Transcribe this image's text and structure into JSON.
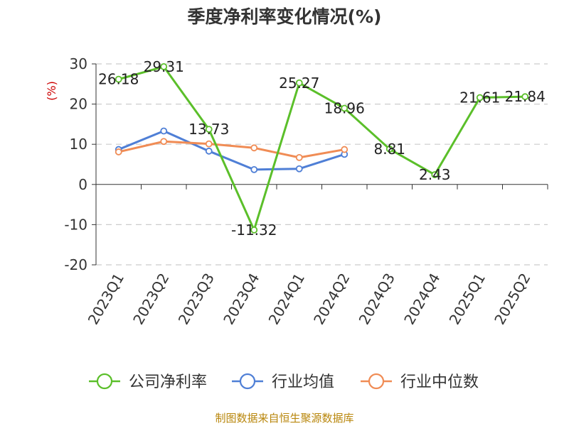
{
  "chart_data": {
    "type": "line",
    "title": "季度净利率变化情况(%)",
    "ylabel": "(%)",
    "ylim": [
      -20,
      30
    ],
    "yticks": [
      30,
      20,
      10,
      0,
      -10,
      -20
    ],
    "grid": true,
    "legend_position": "bottom",
    "categories": [
      "2023Q1",
      "2023Q2",
      "2023Q3",
      "2023Q4",
      "2024Q1",
      "2024Q2",
      "2024Q3",
      "2024Q4",
      "2025Q1",
      "2025Q2"
    ],
    "series": [
      {
        "name": "公司净利率",
        "color": "#5bbf2a",
        "values": [
          26.18,
          29.31,
          13.73,
          -11.32,
          25.27,
          18.96,
          8.81,
          2.43,
          21.61,
          21.84
        ],
        "labels": [
          "26.18",
          "29.31",
          "13.73",
          "-11.32",
          "25.27",
          "18.96",
          "8.81",
          "2.43",
          "21.61",
          "21.84"
        ]
      },
      {
        "name": "行业均值",
        "color": "#4f7fd6",
        "values": [
          8.7,
          13.3,
          8.3,
          3.7,
          3.9,
          7.5,
          null,
          null,
          null,
          null
        ]
      },
      {
        "name": "行业中位数",
        "color": "#f08c55",
        "values": [
          8.1,
          10.7,
          10.1,
          9.1,
          6.7,
          8.7,
          null,
          null,
          null,
          null
        ]
      }
    ]
  },
  "source": "制图数据来自恒生聚源数据库"
}
